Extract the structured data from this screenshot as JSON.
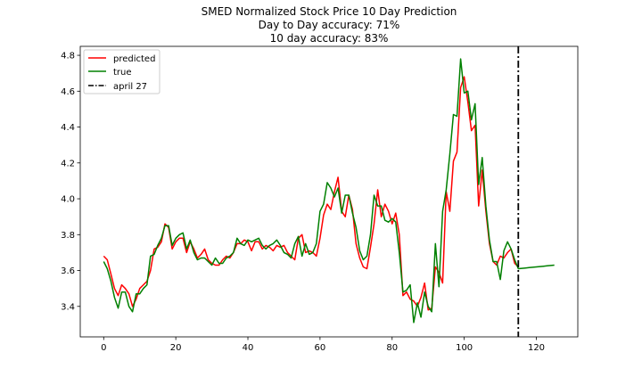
{
  "chart_data": {
    "type": "line",
    "title": "SMED Normalized Stock Price 10 Day Prediction",
    "subtitle_lines": [
      "Day to Day accuracy: 71%",
      "10 day accuracy: 83%"
    ],
    "xlabel": "",
    "ylabel": "",
    "xlim": [
      -6.5,
      131.5
    ],
    "ylim": [
      3.23,
      4.85
    ],
    "x_ticks": [
      0,
      20,
      40,
      60,
      80,
      100,
      120
    ],
    "y_ticks": [
      3.4,
      3.6,
      3.8,
      4.0,
      4.2,
      4.4,
      4.6,
      4.8
    ],
    "y_tick_labels": [
      "3.4",
      "3.6",
      "3.8",
      "4.0",
      "4.2",
      "4.4",
      "4.6",
      "4.8"
    ],
    "grid": false,
    "legend_position": "top-left",
    "series": [
      {
        "name": "predicted",
        "color": "#ff0000",
        "x": [
          0,
          1,
          2,
          3,
          4,
          5,
          6,
          7,
          8,
          9,
          10,
          11,
          12,
          13,
          14,
          15,
          16,
          17,
          18,
          19,
          20,
          21,
          22,
          23,
          24,
          25,
          26,
          27,
          28,
          29,
          30,
          31,
          32,
          33,
          34,
          35,
          36,
          37,
          38,
          39,
          40,
          41,
          42,
          43,
          44,
          45,
          46,
          47,
          48,
          49,
          50,
          51,
          52,
          53,
          54,
          55,
          56,
          57,
          58,
          59,
          60,
          61,
          62,
          63,
          64,
          65,
          66,
          67,
          68,
          69,
          70,
          71,
          72,
          73,
          74,
          75,
          76,
          77,
          78,
          79,
          80,
          81,
          82,
          83,
          84,
          85,
          86,
          87,
          88,
          89,
          90,
          91,
          92,
          93,
          94,
          95,
          96,
          97,
          98,
          99,
          100,
          101,
          102,
          103,
          104,
          105,
          106,
          107,
          108,
          109,
          110,
          111,
          112,
          113,
          114,
          115
        ],
        "y": [
          3.68,
          3.66,
          3.58,
          3.5,
          3.46,
          3.52,
          3.5,
          3.47,
          3.4,
          3.44,
          3.5,
          3.52,
          3.54,
          3.6,
          3.72,
          3.73,
          3.76,
          3.86,
          3.84,
          3.72,
          3.76,
          3.78,
          3.78,
          3.7,
          3.76,
          3.72,
          3.67,
          3.69,
          3.72,
          3.66,
          3.64,
          3.63,
          3.63,
          3.66,
          3.68,
          3.67,
          3.7,
          3.75,
          3.75,
          3.77,
          3.76,
          3.71,
          3.76,
          3.76,
          3.72,
          3.74,
          3.73,
          3.71,
          3.74,
          3.73,
          3.74,
          3.7,
          3.68,
          3.66,
          3.78,
          3.8,
          3.7,
          3.71,
          3.7,
          3.68,
          3.78,
          3.91,
          3.97,
          3.94,
          4.04,
          4.12,
          3.93,
          3.9,
          4.02,
          3.94,
          3.75,
          3.67,
          3.62,
          3.61,
          3.73,
          3.86,
          4.05,
          3.9,
          3.97,
          3.93,
          3.86,
          3.92,
          3.8,
          3.46,
          3.48,
          3.44,
          3.43,
          3.4,
          3.45,
          3.53,
          3.38,
          3.39,
          3.62,
          3.59,
          3.53,
          4.04,
          3.93,
          4.21,
          4.26,
          4.62,
          4.68,
          4.54,
          4.38,
          4.41,
          3.96,
          4.16,
          3.93,
          3.75,
          3.65,
          3.63,
          3.68,
          3.67,
          3.7,
          3.72,
          3.64,
          3.62
        ]
      },
      {
        "name": "true",
        "color": "#008000",
        "x": [
          0,
          1,
          2,
          3,
          4,
          5,
          6,
          7,
          8,
          9,
          10,
          11,
          12,
          13,
          14,
          15,
          16,
          17,
          18,
          19,
          20,
          21,
          22,
          23,
          24,
          25,
          26,
          27,
          28,
          29,
          30,
          31,
          32,
          33,
          34,
          35,
          36,
          37,
          38,
          39,
          40,
          41,
          42,
          43,
          44,
          45,
          46,
          47,
          48,
          49,
          50,
          51,
          52,
          53,
          54,
          55,
          56,
          57,
          58,
          59,
          60,
          61,
          62,
          63,
          64,
          65,
          66,
          67,
          68,
          69,
          70,
          71,
          72,
          73,
          74,
          75,
          76,
          77,
          78,
          79,
          80,
          81,
          82,
          83,
          84,
          85,
          86,
          87,
          88,
          89,
          90,
          91,
          92,
          93,
          94,
          95,
          96,
          97,
          98,
          99,
          100,
          101,
          102,
          103,
          104,
          105,
          106,
          107,
          108,
          109,
          110,
          111,
          112,
          113,
          114,
          115,
          116,
          117,
          118,
          119,
          120,
          121,
          122,
          123,
          124,
          125
        ],
        "y": [
          3.65,
          3.61,
          3.54,
          3.45,
          3.39,
          3.48,
          3.48,
          3.4,
          3.37,
          3.47,
          3.47,
          3.5,
          3.52,
          3.68,
          3.69,
          3.74,
          3.78,
          3.85,
          3.85,
          3.74,
          3.78,
          3.8,
          3.81,
          3.72,
          3.77,
          3.7,
          3.66,
          3.67,
          3.67,
          3.65,
          3.63,
          3.67,
          3.64,
          3.64,
          3.67,
          3.68,
          3.7,
          3.78,
          3.75,
          3.74,
          3.77,
          3.76,
          3.77,
          3.78,
          3.74,
          3.72,
          3.74,
          3.75,
          3.77,
          3.74,
          3.7,
          3.69,
          3.67,
          3.75,
          3.79,
          3.68,
          3.75,
          3.69,
          3.7,
          3.75,
          3.93,
          3.97,
          4.09,
          4.06,
          4.01,
          4.06,
          3.92,
          4.02,
          4.02,
          3.92,
          3.84,
          3.71,
          3.66,
          3.68,
          3.8,
          4.02,
          3.96,
          3.96,
          3.88,
          3.87,
          3.89,
          3.87,
          3.7,
          3.48,
          3.49,
          3.52,
          3.31,
          3.42,
          3.34,
          3.48,
          3.4,
          3.37,
          3.75,
          3.51,
          3.93,
          4.05,
          4.25,
          4.47,
          4.46,
          4.78,
          4.59,
          4.6,
          4.44,
          4.53,
          4.08,
          4.23,
          3.96,
          3.77,
          3.65,
          3.65,
          3.55,
          3.71,
          3.76,
          3.72,
          3.66,
          3.61,
          3.612,
          3.614,
          3.616,
          3.618,
          3.62,
          3.622,
          3.624,
          3.626,
          3.628,
          3.63
        ]
      }
    ],
    "vline": {
      "name": "april 27",
      "x": 115,
      "color": "#000000",
      "style": "dash-dot"
    }
  }
}
